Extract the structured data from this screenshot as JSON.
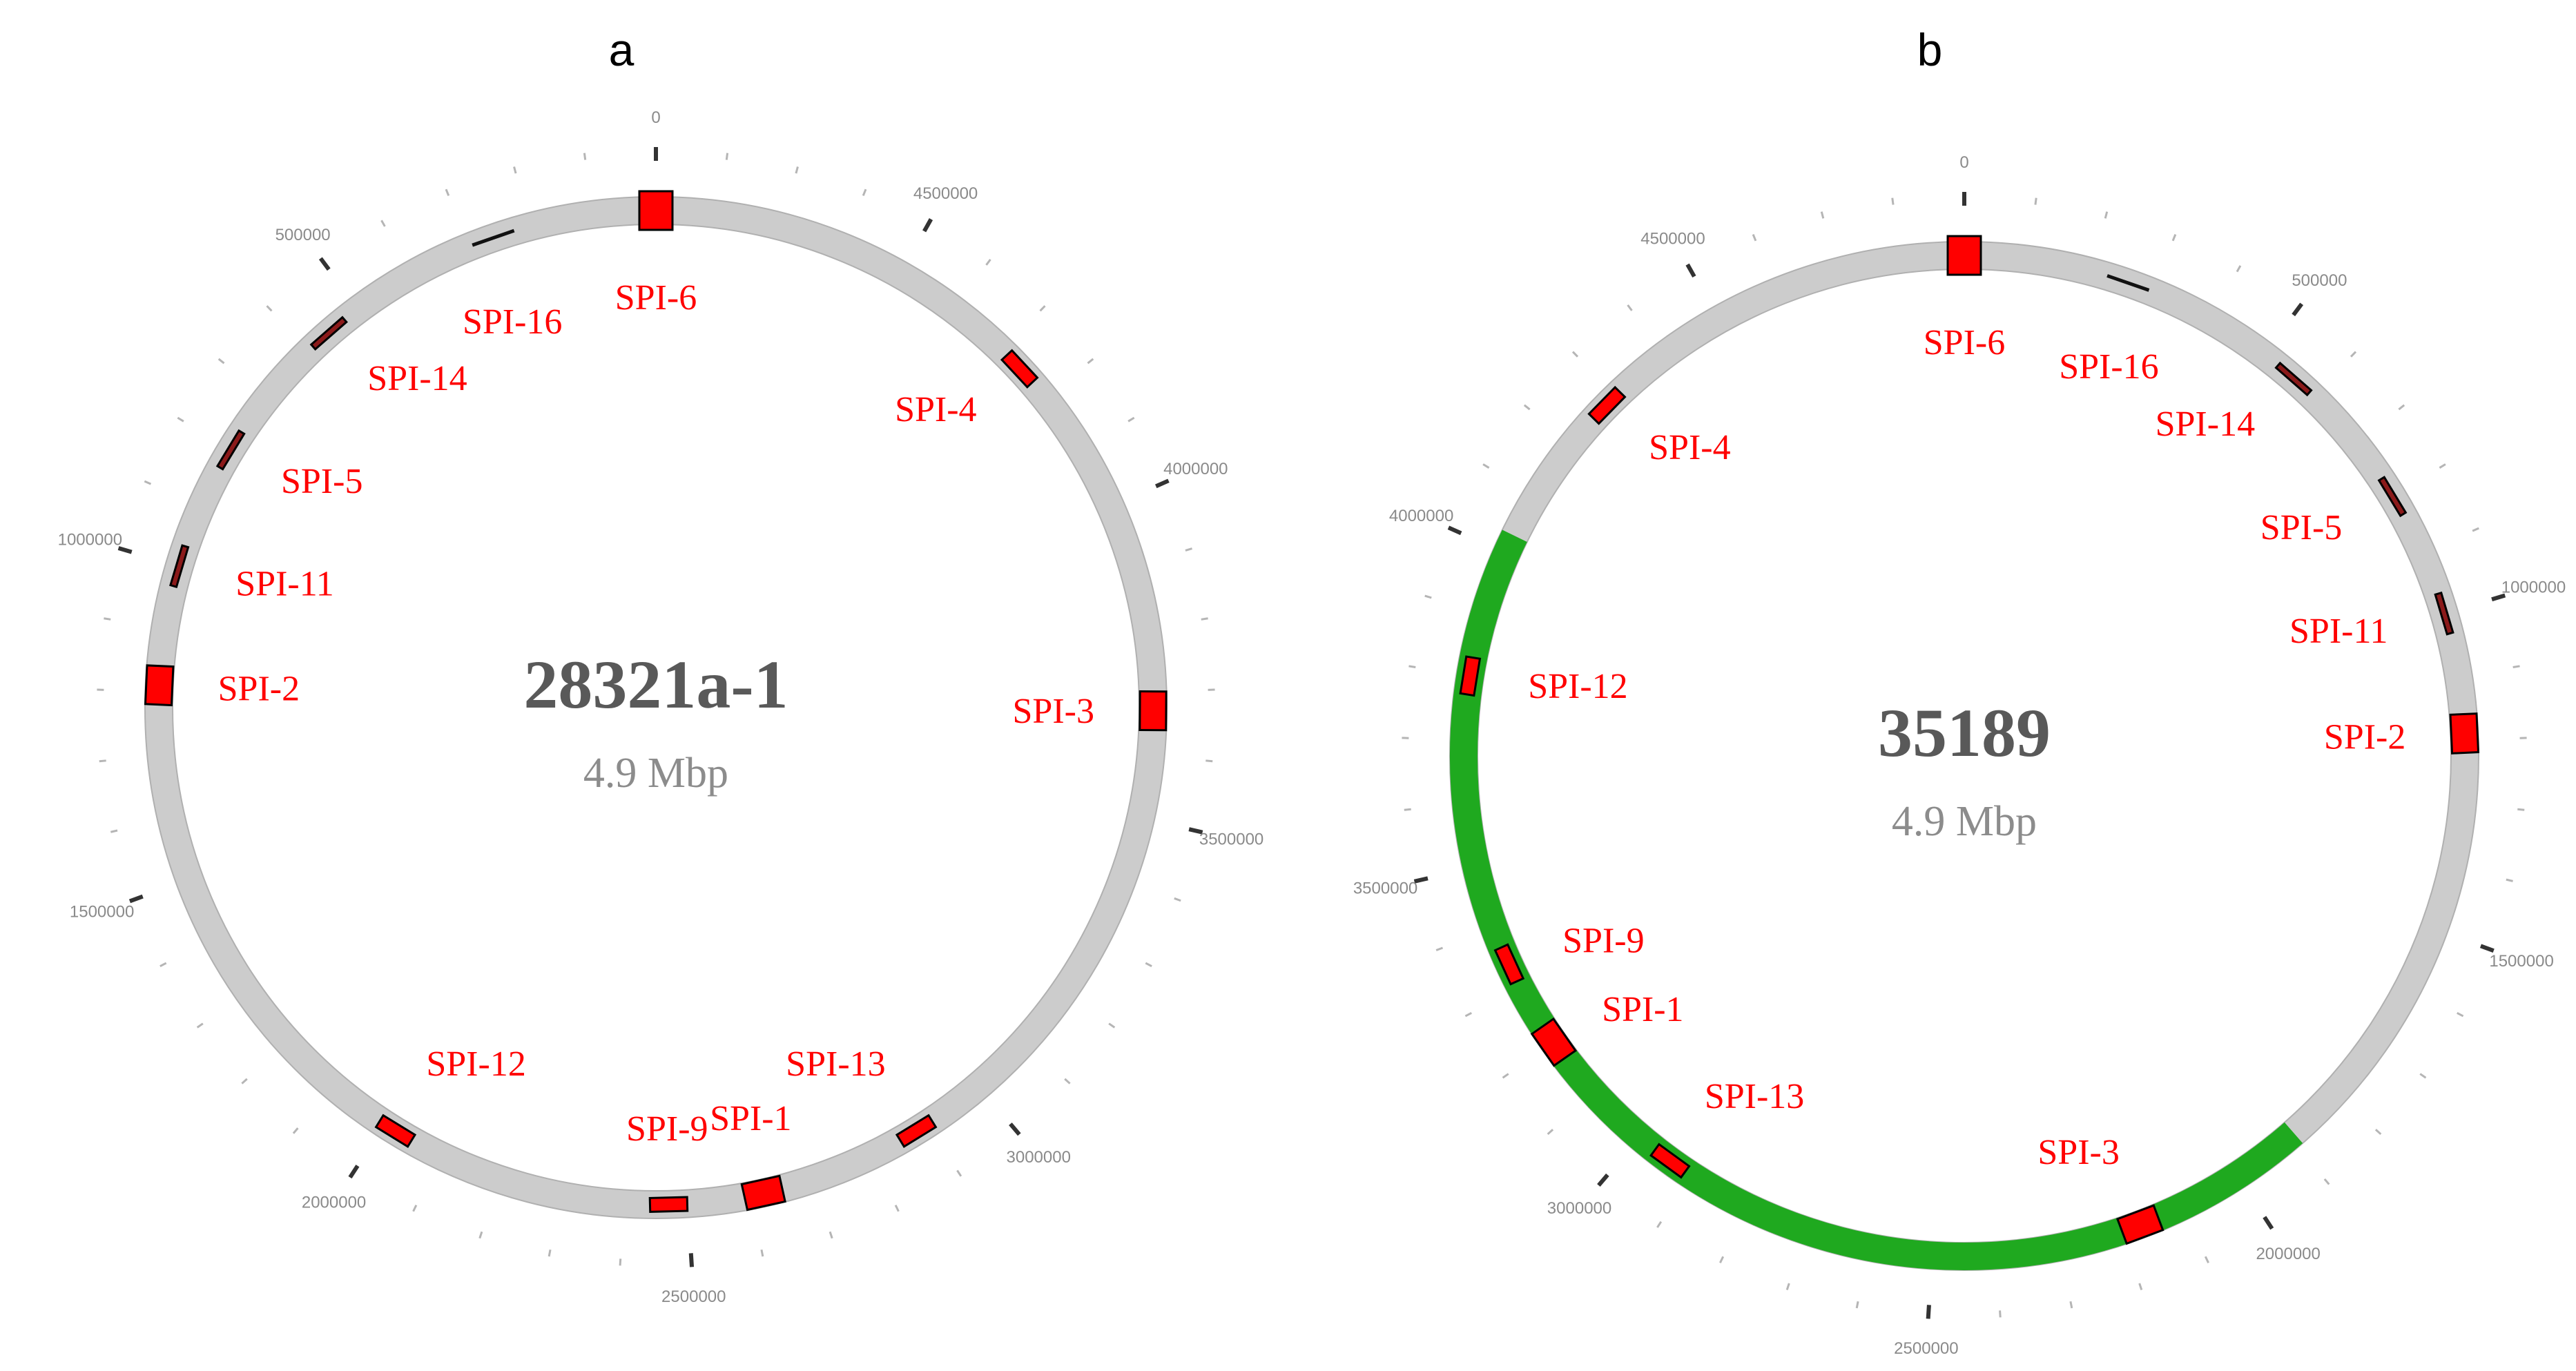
{
  "panels": [
    {
      "letter": "a",
      "name": "28321a-1",
      "size": "4.9 Mbp",
      "genome_length": 4900000,
      "colors": {
        "backbone": "#cccccc",
        "region": "#1fa91f",
        "island": "#ff0000",
        "marker": "#8b1a1a"
      },
      "tick_labels": [
        "0",
        "500000",
        "1000000",
        "1500000",
        "2000000",
        "2500000",
        "3000000",
        "3500000",
        "4000000",
        "4500000"
      ],
      "regions": [],
      "islands": [
        {
          "label": "SPI-6",
          "position": 0,
          "style": "box-large"
        },
        {
          "label": "SPI-16",
          "position": 260000,
          "style": "line"
        },
        {
          "label": "SPI-14",
          "position": 560000,
          "style": "bar-dark"
        },
        {
          "label": "SPI-5",
          "position": 800000,
          "style": "bar-dark"
        },
        {
          "label": "SPI-11",
          "position": 1000000,
          "style": "bar-dark"
        },
        {
          "label": "SPI-2",
          "position": 1190000,
          "style": "box"
        },
        {
          "label": "SPI-12",
          "position": 2020000,
          "style": "box-small"
        },
        {
          "label": "SPI-9",
          "position": 2470000,
          "style": "box-small"
        },
        {
          "label": "SPI-1",
          "position": 2620000,
          "style": "box"
        },
        {
          "label": "SPI-13",
          "position": 2880000,
          "style": "box-small"
        },
        {
          "label": "SPI-3",
          "position": 3670000,
          "style": "box"
        },
        {
          "label": "SPI-4",
          "position": 4260000,
          "style": "box-small"
        }
      ]
    },
    {
      "letter": "b",
      "name": "35189",
      "size": "4.9 Mbp",
      "genome_length": 4900000,
      "colors": {
        "backbone": "#cccccc",
        "region": "#1fa91f",
        "island": "#ff0000",
        "marker": "#8b1a1a"
      },
      "tick_labels": [
        "0",
        "500000",
        "1000000",
        "1500000",
        "2000000",
        "2500000",
        "3000000",
        "3500000",
        "4000000",
        "4500000"
      ],
      "regions": [
        {
          "start": 1890000,
          "end": 4030000
        }
      ],
      "islands": [
        {
          "label": "SPI-6",
          "position": 0,
          "style": "box-large"
        },
        {
          "label": "SPI-16",
          "position": 260000,
          "style": "line"
        },
        {
          "label": "SPI-14",
          "position": 560000,
          "style": "bar-dark"
        },
        {
          "label": "SPI-5",
          "position": 800000,
          "style": "bar-dark"
        },
        {
          "label": "SPI-11",
          "position": 1000000,
          "style": "bar-dark"
        },
        {
          "label": "SPI-2",
          "position": 1190000,
          "style": "box"
        },
        {
          "label": "SPI-3",
          "position": 2170000,
          "style": "box"
        },
        {
          "label": "SPI-13",
          "position": 2940000,
          "style": "box-small"
        },
        {
          "label": "SPI-1",
          "position": 3200000,
          "style": "box"
        },
        {
          "label": "SPI-9",
          "position": 3340000,
          "style": "box-small"
        },
        {
          "label": "SPI-12",
          "position": 3800000,
          "style": "box-small"
        },
        {
          "label": "SPI-4",
          "position": 4280000,
          "style": "box-small"
        }
      ]
    }
  ]
}
